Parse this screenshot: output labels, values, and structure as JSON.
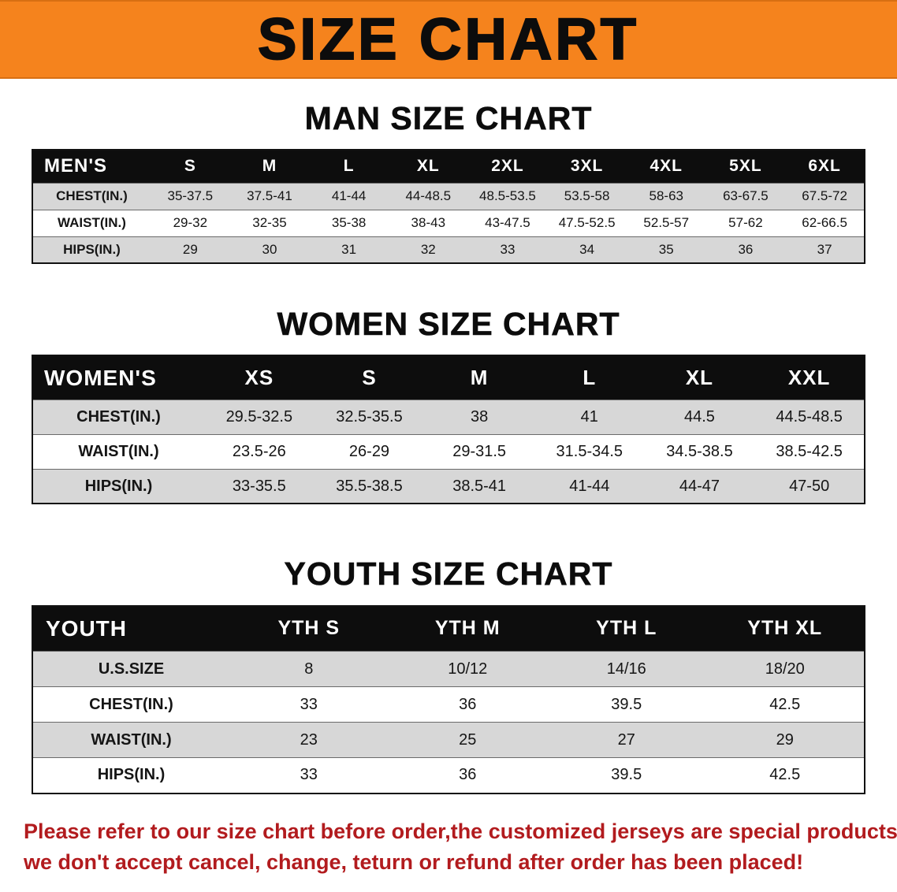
{
  "page": {
    "banner_title": "SIZE CHART",
    "colors": {
      "banner_orange": "#f5831d",
      "header_black": "#0d0d0d",
      "row_gray": "#d7d7d7",
      "row_white": "#ffffff",
      "note_red": "#b21b1e"
    }
  },
  "men": {
    "heading": "MAN SIZE CHART",
    "table": {
      "header": [
        "MEN'S",
        "S",
        "M",
        "L",
        "XL",
        "2XL",
        "3XL",
        "4XL",
        "5XL",
        "6XL"
      ],
      "rows": [
        {
          "label": "CHEST(IN.)",
          "values": [
            "35-37.5",
            "37.5-41",
            "41-44",
            "44-48.5",
            "48.5-53.5",
            "53.5-58",
            "58-63",
            "63-67.5",
            "67.5-72"
          ]
        },
        {
          "label": "WAIST(IN.)",
          "values": [
            "29-32",
            "32-35",
            "35-38",
            "38-43",
            "43-47.5",
            "47.5-52.5",
            "52.5-57",
            "57-62",
            "62-66.5"
          ]
        },
        {
          "label": "HIPS(IN.)",
          "values": [
            "29",
            "30",
            "31",
            "32",
            "33",
            "34",
            "35",
            "36",
            "37"
          ]
        }
      ]
    }
  },
  "women": {
    "heading": "WOMEN SIZE CHART",
    "table": {
      "header": [
        "WOMEN'S",
        "XS",
        "S",
        "M",
        "L",
        "XL",
        "XXL"
      ],
      "rows": [
        {
          "label": "CHEST(IN.)",
          "values": [
            "29.5-32.5",
            "32.5-35.5",
            "38",
            "41",
            "44.5",
            "44.5-48.5"
          ]
        },
        {
          "label": "WAIST(IN.)",
          "values": [
            "23.5-26",
            "26-29",
            "29-31.5",
            "31.5-34.5",
            "34.5-38.5",
            "38.5-42.5"
          ]
        },
        {
          "label": "HIPS(IN.)",
          "values": [
            "33-35.5",
            "35.5-38.5",
            "38.5-41",
            "41-44",
            "44-47",
            "47-50"
          ]
        }
      ]
    }
  },
  "youth": {
    "heading": "YOUTH SIZE CHART",
    "table": {
      "header": [
        "YOUTH",
        "YTH S",
        "YTH M",
        "YTH L",
        "YTH XL"
      ],
      "rows": [
        {
          "label": "U.S.SIZE",
          "values": [
            "8",
            "10/12",
            "14/16",
            "18/20"
          ]
        },
        {
          "label": "CHEST(IN.)",
          "values": [
            "33",
            "36",
            "39.5",
            "42.5"
          ]
        },
        {
          "label": "WAIST(IN.)",
          "values": [
            "23",
            "25",
            "27",
            "29"
          ]
        },
        {
          "label": "HIPS(IN.)",
          "values": [
            "33",
            "36",
            "39.5",
            "42.5"
          ]
        }
      ]
    }
  },
  "note": {
    "line1": "Please refer to our size chart before order,the customized jerseys are special products,",
    "line2": "we don't accept cancel, change, teturn or refund after order has been placed!"
  }
}
